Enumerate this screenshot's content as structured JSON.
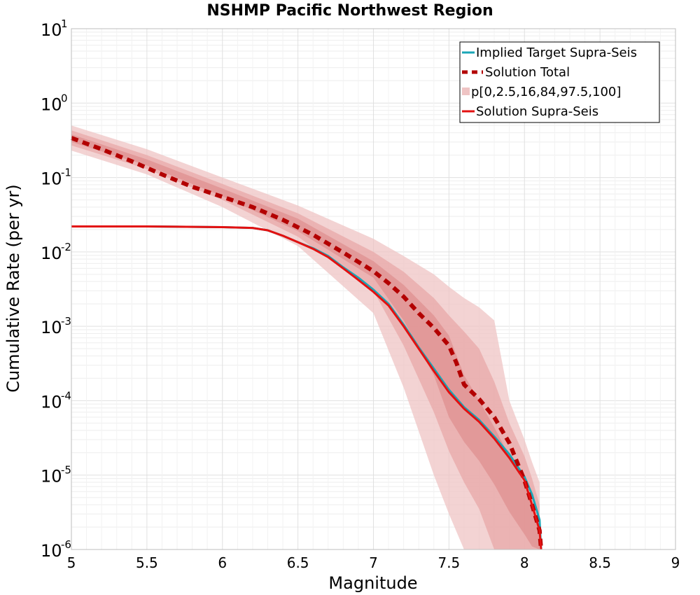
{
  "chart_data": {
    "type": "line",
    "title": "NSHMP Pacific Northwest Region",
    "xlabel": "Magnitude",
    "ylabel": "Cumulative Rate (per yr)",
    "xlim": [
      5,
      9
    ],
    "ylim": [
      1e-06,
      10
    ],
    "y_scale": "log",
    "x_ticks": [
      5,
      5.5,
      6,
      6.5,
      7,
      7.5,
      8,
      8.5,
      9
    ],
    "x_tick_labels": [
      "5",
      "5.5",
      "6",
      "6.5",
      "7",
      "7.5",
      "8",
      "8.5",
      "9"
    ],
    "y_tick_exponents": [
      1,
      0,
      -1,
      -2,
      -3,
      -4,
      -5,
      -6
    ],
    "y_tick_base": "10",
    "grid": true,
    "legend_position": "top-right",
    "bands": {
      "legend_label": "p[0,2.5,16,84,97.5,100]",
      "x": [
        5,
        5.5,
        6,
        6.5,
        7,
        7.2,
        7.4,
        7.5,
        7.6,
        7.7,
        7.8,
        7.9,
        8.0,
        8.05,
        8.1
      ],
      "outer": {
        "color": "#efc4c4",
        "lower": [
          0.23,
          0.11,
          0.04,
          0.012,
          0.0015,
          0.00015,
          1e-05,
          3e-06,
          1e-06,
          1e-06,
          1e-06,
          1e-06,
          1e-06,
          1e-06,
          1e-06
        ],
        "upper": [
          0.5,
          0.24,
          0.1,
          0.042,
          0.015,
          0.0088,
          0.005,
          0.0034,
          0.0024,
          0.0018,
          0.0012,
          0.0001,
          3e-05,
          1.5e-05,
          8e-06
        ]
      },
      "middle": {
        "color": "#e8a8a8",
        "lower": [
          0.27,
          0.13,
          0.05,
          0.016,
          0.003,
          0.00055,
          7e-05,
          2.1e-05,
          8e-06,
          3.5e-06,
          1e-06,
          1e-06,
          1e-06,
          1e-06,
          1e-06
        ],
        "upper": [
          0.43,
          0.2,
          0.082,
          0.033,
          0.01,
          0.0054,
          0.0024,
          0.0014,
          0.00085,
          0.0005,
          0.00018,
          5e-05,
          1.8e-05,
          9e-06,
          4e-06
        ]
      },
      "inner": {
        "color": "#df9090",
        "lower": [
          0.3,
          0.145,
          0.056,
          0.019,
          0.0045,
          0.0012,
          0.00022,
          6e-05,
          2.8e-05,
          1.55e-05,
          7.5e-06,
          3.2e-06,
          1.6e-06,
          1.1e-06,
          1e-06
        ],
        "upper": [
          0.38,
          0.175,
          0.071,
          0.028,
          0.0075,
          0.0036,
          0.0014,
          0.00075,
          0.00022,
          0.0001,
          4.4e-05,
          1.8e-05,
          7.5e-06,
          3.8e-06,
          1.8e-06
        ]
      }
    },
    "series": [
      {
        "name": "Implied Target Supra-Seis",
        "color": "#1aa6b7",
        "style": "solid",
        "x": [
          5,
          5.5,
          6,
          6.2,
          6.3,
          6.4,
          6.5,
          6.6,
          6.7,
          6.8,
          6.9,
          7.0,
          7.1,
          7.2,
          7.3,
          7.4,
          7.5,
          7.6,
          7.7,
          7.8,
          7.9,
          8.0,
          8.05,
          8.1,
          8.11
        ],
        "y": [
          0.022,
          0.022,
          0.0215,
          0.021,
          0.0195,
          0.0165,
          0.0135,
          0.0112,
          0.0088,
          0.0062,
          0.0045,
          0.0031,
          0.002,
          0.00105,
          0.00052,
          0.00027,
          0.00014,
          8.2e-05,
          5.5e-05,
          3.3e-05,
          1.9e-05,
          9.5e-06,
          5.5e-06,
          2.5e-06,
          1e-06
        ]
      },
      {
        "name": "Solution Total",
        "color": "#b30000",
        "style": "dashed",
        "x": [
          5,
          5.2,
          5.4,
          5.6,
          5.8,
          6.0,
          6.2,
          6.4,
          6.6,
          6.8,
          7.0,
          7.1,
          7.2,
          7.3,
          7.4,
          7.5,
          7.55,
          7.6,
          7.7,
          7.8,
          7.9,
          8.0,
          8.05,
          8.1,
          8.11
        ],
        "y": [
          0.34,
          0.24,
          0.165,
          0.11,
          0.075,
          0.055,
          0.04,
          0.027,
          0.017,
          0.0098,
          0.0055,
          0.0038,
          0.0025,
          0.0015,
          0.00095,
          0.00055,
          0.00032,
          0.000165,
          0.000105,
          6e-05,
          2.7e-05,
          8.5e-06,
          4e-06,
          1.8e-06,
          1e-06
        ]
      },
      {
        "name": "Solution Supra-Seis",
        "color": "#e31010",
        "style": "solid",
        "x": [
          5,
          5.5,
          6,
          6.2,
          6.3,
          6.4,
          6.5,
          6.6,
          6.7,
          6.8,
          6.9,
          7.0,
          7.1,
          7.2,
          7.3,
          7.4,
          7.5,
          7.6,
          7.7,
          7.8,
          7.9,
          8.0,
          8.05,
          8.1,
          8.11
        ],
        "y": [
          0.022,
          0.022,
          0.0215,
          0.021,
          0.0195,
          0.0165,
          0.0135,
          0.011,
          0.0085,
          0.006,
          0.0042,
          0.0029,
          0.0019,
          0.001,
          0.0005,
          0.00025,
          0.00013,
          7.8e-05,
          5.2e-05,
          3.1e-05,
          1.7e-05,
          8.5e-06,
          4e-06,
          1.8e-06,
          1e-06
        ]
      }
    ]
  }
}
